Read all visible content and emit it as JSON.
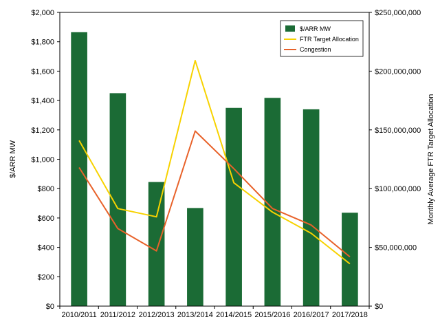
{
  "chart_data": {
    "type": "bar",
    "categories": [
      "2010/2011",
      "2011/2012",
      "2012/2013",
      "2013/2014",
      "2014/2015",
      "2015/2016",
      "2016/2017",
      "2017/2018"
    ],
    "series": [
      {
        "name": "$/ARR MW",
        "type": "bar",
        "axis": "left",
        "color": "#1b6b35",
        "values": [
          1865,
          1450,
          845,
          668,
          1350,
          1418,
          1340,
          636
        ]
      },
      {
        "name": "FTR Target Allocation",
        "type": "line",
        "axis": "right",
        "color": "#f7d200",
        "values": [
          141000000,
          83000000,
          76000000,
          209000000,
          105000000,
          80000000,
          62000000,
          36000000
        ]
      },
      {
        "name": "Congestion",
        "type": "line",
        "axis": "right",
        "color": "#e8622a",
        "values": [
          118000000,
          66000000,
          47000000,
          149000000,
          117000000,
          83000000,
          69000000,
          42000000
        ]
      }
    ],
    "ylabel": "$/ARR MW",
    "y2label": "Monthly Average FTR Target Allocation",
    "ylim": [
      0,
      2000
    ],
    "y2lim": [
      0,
      250000000
    ],
    "y_ticks": [
      "$0",
      "$200",
      "$400",
      "$600",
      "$800",
      "$1,000",
      "$1,200",
      "$1,400",
      "$1,600",
      "$1,800",
      "$2,000"
    ],
    "y2_ticks": [
      "$0",
      "$50,000,000",
      "$100,000,000",
      "$150,000,000",
      "$200,000,000",
      "$250,000,000"
    ],
    "grid": false,
    "legend_position": "top-right"
  }
}
